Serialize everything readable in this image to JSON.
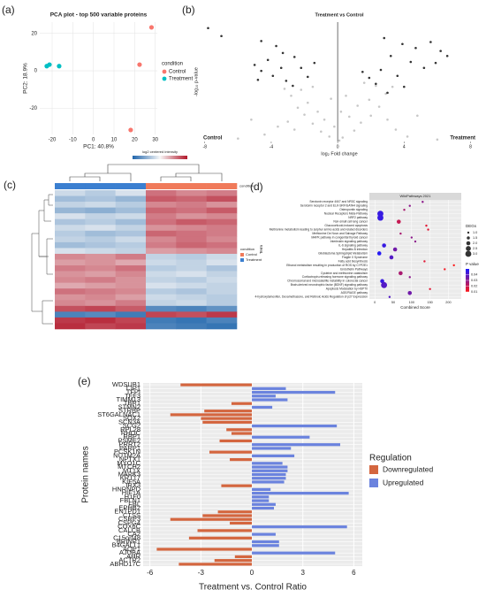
{
  "chart_data": [
    {
      "type": "scatter",
      "panel": "(a)",
      "title": "PCA plot - top 500 variable proteins",
      "xlabel": "PC1: 40.8%",
      "ylabel": "PC2: 18.9%",
      "legend_title": "condition",
      "xlim": [
        -26,
        31
      ],
      "ylim": [
        -34,
        26
      ],
      "xticks": [
        -20,
        -10,
        0,
        10,
        20,
        30
      ],
      "yticks": [
        -20,
        0,
        20
      ],
      "grid": true,
      "series": [
        {
          "name": "Control",
          "color": "#f8766d",
          "x": [
            28.2,
            22.4,
            18.1
          ],
          "y": [
            23.2,
            3.3,
            -31.6
          ]
        },
        {
          "name": "Treatment",
          "color": "#00bfc4",
          "x": [
            -22.6,
            -21.3,
            -16.6
          ],
          "y": [
            2.5,
            3.3,
            2.5
          ]
        }
      ]
    },
    {
      "type": "scatter",
      "panel": "(b)",
      "title": "Treatment vs Control",
      "xlabel": "log₂ Fold change",
      "ylabel": "-log₁₀ p-value",
      "annotations": [
        "Control",
        "Treatment"
      ],
      "xlim": [
        -8.2,
        8.4
      ],
      "ylim": [
        0,
        12
      ],
      "xticks": [
        -8,
        -4,
        0,
        4,
        8
      ],
      "vline": 0,
      "grid": false,
      "series": [
        {
          "color": "#bdbdbd",
          "x": [
            -0.5,
            0.3,
            -1,
            1,
            -1.5,
            1.4,
            -2,
            2,
            -2.4,
            2.5,
            -0.8,
            0.7,
            -1.8,
            1.9,
            -2.8,
            2.9,
            -3.2,
            3.3,
            -0.2,
            0.2,
            -1.2,
            1.2,
            -2.2,
            2.3,
            -3.6,
            3.5,
            -5.2,
            4.8,
            -4.4,
            4.2,
            -0.4,
            0.5,
            -1.5,
            1.6,
            -6,
            6,
            0.1,
            -3,
            3,
            -2.6
          ],
          "y": [
            0.5,
            0.4,
            1,
            1.1,
            1.8,
            1.9,
            2.7,
            2.6,
            3.4,
            3.5,
            2.2,
            2.5,
            3.9,
            4.2,
            4.6,
            4.8,
            5.3,
            5.5,
            1.5,
            3,
            3,
            3.6,
            5.2,
            5.6,
            1.5,
            1.2,
            2.2,
            2.6,
            0.7,
            0.5,
            4.3,
            4.6,
            5.5,
            5.9,
            0.3,
            0.2,
            0.1,
            2,
            2.2,
            1.2
          ]
        },
        {
          "color": "#111111",
          "x": [
            -7.8,
            -7,
            -4.6,
            -3.7,
            -3.3,
            -2.6,
            -4.2,
            -5,
            -4.6,
            -3.9,
            -3.1,
            -2.2,
            -1.8,
            -4.8,
            -2.7,
            -1.4,
            -3.4,
            2.8,
            3.9,
            4.7,
            5.6,
            6.2,
            3.2,
            4.4,
            5.2,
            2.6,
            3.6,
            1.9,
            2.3,
            4,
            5.9,
            6.6,
            1.5,
            3
          ],
          "y": [
            11.4,
            10.6,
            10.1,
            9.6,
            8.9,
            8.5,
            8.2,
            7.7,
            7.1,
            6.6,
            6.1,
            7.4,
            6.5,
            6.2,
            5.6,
            7.9,
            7.4,
            10.4,
            9.8,
            9.4,
            10,
            9.1,
            8.6,
            8,
            7.4,
            7.2,
            6.6,
            6.4,
            5.8,
            5.5,
            7.9,
            8.6,
            7,
            4.9
          ]
        }
      ]
    },
    {
      "type": "heatmap",
      "panel": "(c)",
      "colorbar_title": "log2 centered intensity",
      "annotation_label": "condition",
      "legend_title": "condition",
      "zlim": [
        -2,
        2
      ],
      "colors": [
        "#2166ac",
        "#f7f7f7",
        "#b2182b"
      ],
      "legend": [
        {
          "name": "Control",
          "color": "#f07a5a"
        },
        {
          "name": "Treatment",
          "color": "#3b7fd0"
        }
      ],
      "column_groups": [
        "Treatment",
        "Treatment",
        "Treatment",
        "Control",
        "Control",
        "Control"
      ],
      "matrix": [
        [
          -0.4,
          -0.6,
          -0.3,
          1.2,
          1.0,
          1.1
        ],
        [
          -0.8,
          -0.7,
          -0.9,
          1.4,
          1.3,
          1.5
        ],
        [
          -0.5,
          -0.4,
          -0.6,
          1.0,
          1.1,
          0.9
        ],
        [
          -0.9,
          -1.0,
          -0.8,
          1.3,
          1.2,
          1.4
        ],
        [
          -0.3,
          -0.5,
          -0.4,
          1.1,
          0.9,
          1.0
        ],
        [
          -0.7,
          -0.6,
          -0.8,
          1.2,
          1.4,
          1.3
        ],
        [
          -0.4,
          -0.3,
          -0.5,
          0.9,
          1.0,
          1.1
        ],
        [
          -0.6,
          -0.8,
          -0.7,
          1.3,
          1.2,
          1.1
        ],
        [
          -0.5,
          -0.6,
          -0.4,
          1.0,
          1.2,
          1.0
        ],
        [
          -0.8,
          -0.7,
          -0.6,
          1.1,
          1.3,
          1.2
        ],
        [
          -0.3,
          -0.4,
          -0.5,
          0.8,
          0.9,
          1.0
        ],
        [
          1.0,
          0.9,
          1.1,
          -0.5,
          -0.6,
          -0.4
        ],
        [
          0.8,
          0.9,
          0.7,
          -0.4,
          -0.5,
          -0.3
        ],
        [
          1.1,
          1.0,
          1.2,
          -0.6,
          -0.5,
          -0.7
        ],
        [
          0.9,
          0.8,
          1.0,
          -0.4,
          -0.3,
          -0.5
        ],
        [
          1.0,
          1.1,
          0.9,
          -0.5,
          -0.6,
          -0.4
        ],
        [
          0.7,
          0.8,
          0.9,
          -0.3,
          -0.4,
          -0.5
        ],
        [
          1.2,
          1.1,
          1.0,
          -0.6,
          -0.7,
          -0.5
        ],
        [
          0.9,
          1.0,
          0.8,
          -0.4,
          -0.5,
          -0.6
        ],
        [
          1.0,
          0.9,
          1.1,
          -0.5,
          -0.4,
          -0.6
        ],
        [
          1.5,
          1.6,
          1.4,
          -1.5,
          -1.6,
          -1.4
        ],
        [
          -1.6,
          -1.5,
          -1.7,
          1.6,
          1.5,
          1.7
        ],
        [
          1.7,
          1.8,
          1.6,
          -1.7,
          -1.8,
          -1.6
        ],
        [
          1.8,
          1.6,
          1.7,
          -1.6,
          -1.7,
          -1.8
        ]
      ]
    },
    {
      "type": "dot",
      "panel": "(d)",
      "title": "WikiPathways 2021",
      "xlabel": "Combined Score",
      "ylabel": "Term",
      "categories": [
        "Serotonin receptor 4/6/7 and NR3C signaling",
        "Serotonin receptor 2 and ELK-SRF/GATA4 signaling",
        "Osteopontin signaling",
        "Nuclear Receptors Meta-Pathway",
        "NRF2 pathway",
        "Non-small cell lung cancer",
        "Glucocorticoid-induced apoptosis",
        "Methionine metabolism leading to sulphur amino acids and related disorders",
        "Methionine De Novo and Salvage Pathway",
        "MAPK pathway in congenital thyroid cancer",
        "Interleukin signaling pathway",
        "IL-6 signaling pathway",
        "Hepatitis B infection",
        "Glioblastoma Sphingolipid Metabolism",
        "Fragile X Syndrome",
        "Fatty acid biosynthesis",
        "Ethanol metabolism resulting in production of ROS by CYP2E1",
        "Endothelin Pathways",
        "Cysteine and methionine catabolism",
        "Corticotropin-releasing hormone signaling pathway",
        "Chromosomal and microsatellite instability in colorectal cancer",
        "Brain-derived neurotrophic factor (BDNF) signaling pathway",
        "Apoptosis Modulation by HSP70",
        "AGE/RAGE pathway",
        "4-hydroxytamoxifen, Dexamethasone, and Retinoic Acids Regulation of p27 Expression"
      ],
      "values": [
        130,
        95,
        80,
        15,
        15,
        65,
        140,
        145,
        70,
        100,
        110,
        25,
        55,
        12,
        45,
        135,
        215,
        190,
        70,
        95,
        20,
        25,
        150,
        95,
        40
      ],
      "sizes": [
        1,
        1,
        1,
        3,
        3,
        2,
        1,
        1,
        1,
        1,
        1,
        2,
        2,
        2,
        2,
        1,
        1,
        1,
        2,
        1,
        2,
        3,
        1,
        2,
        1
      ],
      "pvalues": [
        0.03,
        0.03,
        0.025,
        0.045,
        0.045,
        0.02,
        0.015,
        0.015,
        0.025,
        0.03,
        0.03,
        0.045,
        0.035,
        0.048,
        0.04,
        0.015,
        0.01,
        0.012,
        0.025,
        0.03,
        0.045,
        0.04,
        0.015,
        0.035,
        0.04
      ],
      "xlim": [
        -15,
        235
      ],
      "xticks": [
        0,
        50,
        100,
        150,
        200
      ],
      "size_title": "DEGs",
      "size_ticks": [
        {
          "value": 1,
          "label": "1.0"
        },
        {
          "value": 1.5,
          "label": "1.5"
        },
        {
          "value": 2,
          "label": "2.0"
        },
        {
          "value": 2.5,
          "label": "2.5"
        },
        {
          "value": 3,
          "label": "3.0"
        }
      ],
      "color_title": "P value",
      "clim": [
        0.01,
        0.05
      ],
      "color_ticks": [
        0.01,
        0.02,
        0.03,
        0.04
      ],
      "colors": [
        "#ff1a1a",
        "#1a1aff"
      ]
    },
    {
      "type": "hbar",
      "panel": "(e)",
      "xlabel": "Treatment vs. Control Ratio",
      "ylabel": "Protein names",
      "legend_title": "Regulation",
      "categories": [
        "WDSUB1",
        "TJP1",
        "TFPI",
        "TFF3",
        "TIMM13",
        "TBR1",
        "STMN2",
        "STRBP",
        "ST6GALNAC1",
        "SOX2",
        "SCN3A",
        "SCG2",
        "RPL28",
        "RHOC",
        "RBP1",
        "PSME2",
        "PRRT2",
        "PARP1",
        "PCSK1N",
        "NUTM2A",
        "NPTX1",
        "MYO1C",
        "MTCH2",
        "MT1X",
        "MAPK3",
        "KRT17",
        "KIF5A",
        "IRX3",
        "HNRNPD",
        "HIF1A",
        "H1F0",
        "FBLN1",
        "FBL",
        "EPHB2",
        "ENTPD1",
        "CTSS",
        "CSRP3",
        "CSPG4",
        "COX6C",
        "CALCB",
        "CA2",
        "C15orf48",
        "BRINP1",
        "B4GALT1",
        "AQP1",
        "AJUBA",
        "AHR",
        "ACTR2",
        "ABHD17C"
      ],
      "series": [
        {
          "name": "Downregulated",
          "color": "#d4663f",
          "values": [
            -4.2,
            null,
            null,
            null,
            null,
            -1.2,
            null,
            -2.8,
            -4.8,
            -3.0,
            -2.9,
            null,
            -1.5,
            -1.2,
            null,
            -1.9,
            null,
            null,
            -2.5,
            null,
            -1.3,
            null,
            null,
            null,
            null,
            null,
            null,
            -1.8,
            null,
            null,
            null,
            null,
            null,
            null,
            -2.0,
            -2.9,
            -4.8,
            -1.3,
            null,
            -3.2,
            null,
            -3.7,
            null,
            null,
            -5.6,
            null,
            -1.0,
            -2.2,
            -4.3
          ]
        },
        {
          "name": "Upregulated",
          "color": "#6b83de",
          "values": [
            null,
            2.0,
            4.9,
            1.4,
            2.1,
            null,
            1.2,
            null,
            null,
            null,
            null,
            5.0,
            null,
            null,
            3.4,
            null,
            5.2,
            2.3,
            null,
            2.5,
            null,
            1.8,
            2.1,
            2.1,
            2.0,
            2.0,
            1.9,
            null,
            1.1,
            5.7,
            1.0,
            1.0,
            1.4,
            1.3,
            null,
            null,
            null,
            null,
            5.6,
            null,
            1.4,
            null,
            1.6,
            1.6,
            null,
            4.9,
            null,
            null,
            null
          ]
        }
      ],
      "xlim": [
        -6.4,
        6.5
      ],
      "xticks": [
        -6,
        -3,
        0,
        3,
        6
      ],
      "grid": true
    }
  ]
}
